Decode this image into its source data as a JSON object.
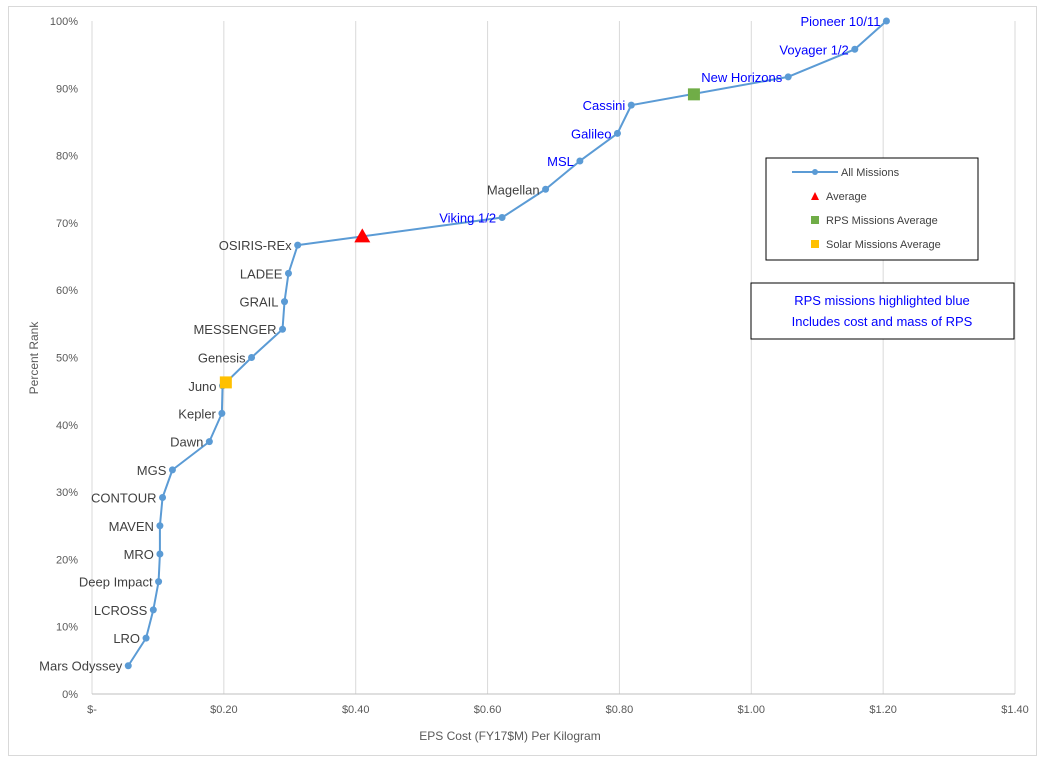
{
  "chart_data": {
    "type": "line",
    "xlabel": "EPS Cost (FY17$M) Per Kilogram",
    "ylabel": "Percent Rank",
    "xlim": [
      0,
      1.4
    ],
    "ylim": [
      0,
      1.0
    ],
    "x_ticks": [
      {
        "value": 0,
        "label": "$-"
      },
      {
        "value": 0.2,
        "label": "$0.20"
      },
      {
        "value": 0.4,
        "label": "$0.40"
      },
      {
        "value": 0.6,
        "label": "$0.60"
      },
      {
        "value": 0.8,
        "label": "$0.80"
      },
      {
        "value": 1.0,
        "label": "$1.00"
      },
      {
        "value": 1.2,
        "label": "$1.20"
      },
      {
        "value": 1.4,
        "label": "$1.40"
      }
    ],
    "y_ticks": [
      {
        "value": 0,
        "label": "0%"
      },
      {
        "value": 0.1,
        "label": "10%"
      },
      {
        "value": 0.2,
        "label": "20%"
      },
      {
        "value": 0.3,
        "label": "30%"
      },
      {
        "value": 0.4,
        "label": "40%"
      },
      {
        "value": 0.5,
        "label": "50%"
      },
      {
        "value": 0.6,
        "label": "60%"
      },
      {
        "value": 0.7,
        "label": "70%"
      },
      {
        "value": 0.8,
        "label": "80%"
      },
      {
        "value": 0.9,
        "label": "90%"
      },
      {
        "value": 1.0,
        "label": "100%"
      }
    ],
    "grid": {
      "vertical": true,
      "horizontal": false
    },
    "series": [
      {
        "name": "All Missions",
        "color": "#5b9bd5",
        "points": [
          {
            "label": "Mars Odyssey",
            "x": 0.055,
            "y": 0.042,
            "rps": false
          },
          {
            "label": "LRO",
            "x": 0.082,
            "y": 0.083,
            "rps": false
          },
          {
            "label": "LCROSS",
            "x": 0.093,
            "y": 0.125,
            "rps": false
          },
          {
            "label": "Deep Impact",
            "x": 0.101,
            "y": 0.167,
            "rps": false
          },
          {
            "label": "MRO",
            "x": 0.103,
            "y": 0.208,
            "rps": false
          },
          {
            "label": "MAVEN",
            "x": 0.103,
            "y": 0.25,
            "rps": false
          },
          {
            "label": "CONTOUR",
            "x": 0.107,
            "y": 0.292,
            "rps": false
          },
          {
            "label": "MGS",
            "x": 0.122,
            "y": 0.333,
            "rps": false
          },
          {
            "label": "Dawn",
            "x": 0.178,
            "y": 0.375,
            "rps": false
          },
          {
            "label": "Kepler",
            "x": 0.197,
            "y": 0.417,
            "rps": false
          },
          {
            "label": "Juno",
            "x": 0.198,
            "y": 0.458,
            "rps": false
          },
          {
            "label": "Genesis",
            "x": 0.242,
            "y": 0.5,
            "rps": false
          },
          {
            "label": "MESSENGER",
            "x": 0.289,
            "y": 0.542,
            "rps": false
          },
          {
            "label": "GRAIL",
            "x": 0.292,
            "y": 0.583,
            "rps": false
          },
          {
            "label": "LADEE",
            "x": 0.298,
            "y": 0.625,
            "rps": false
          },
          {
            "label": "OSIRIS-REx",
            "x": 0.312,
            "y": 0.667,
            "rps": false
          },
          {
            "label": "Viking 1/2",
            "x": 0.622,
            "y": 0.708,
            "rps": true
          },
          {
            "label": "Magellan",
            "x": 0.688,
            "y": 0.75,
            "rps": false
          },
          {
            "label": "MSL",
            "x": 0.74,
            "y": 0.792,
            "rps": true
          },
          {
            "label": "Galileo",
            "x": 0.797,
            "y": 0.833,
            "rps": true
          },
          {
            "label": "Cassini",
            "x": 0.818,
            "y": 0.875,
            "rps": true
          },
          {
            "label": "New Horizons",
            "x": 1.056,
            "y": 0.917,
            "rps": true
          },
          {
            "label": "Voyager 1/2",
            "x": 1.157,
            "y": 0.958,
            "rps": true
          },
          {
            "label": "Pioneer 10/11",
            "x": 1.205,
            "y": 1.0,
            "rps": true
          }
        ]
      }
    ],
    "markers": [
      {
        "name": "Average",
        "shape": "triangle",
        "color": "#ff0000",
        "x": 0.41,
        "y": 0.68
      },
      {
        "name": "RPS Missions Average",
        "shape": "square",
        "color": "#70ad47",
        "x": 0.913,
        "y": 0.891
      },
      {
        "name": "Solar Missions Average",
        "shape": "square",
        "color": "#ffc000",
        "x": 0.203,
        "y": 0.463
      }
    ],
    "label_colors": {
      "rps": "#0000ff",
      "other": "#404040"
    },
    "legend": {
      "position": "right",
      "entries": [
        "All Missions",
        "Average",
        "RPS Missions Average",
        "Solar Missions Average"
      ]
    },
    "note": {
      "lines": [
        "RPS missions highlighted blue",
        "Includes cost and mass of RPS"
      ]
    }
  }
}
